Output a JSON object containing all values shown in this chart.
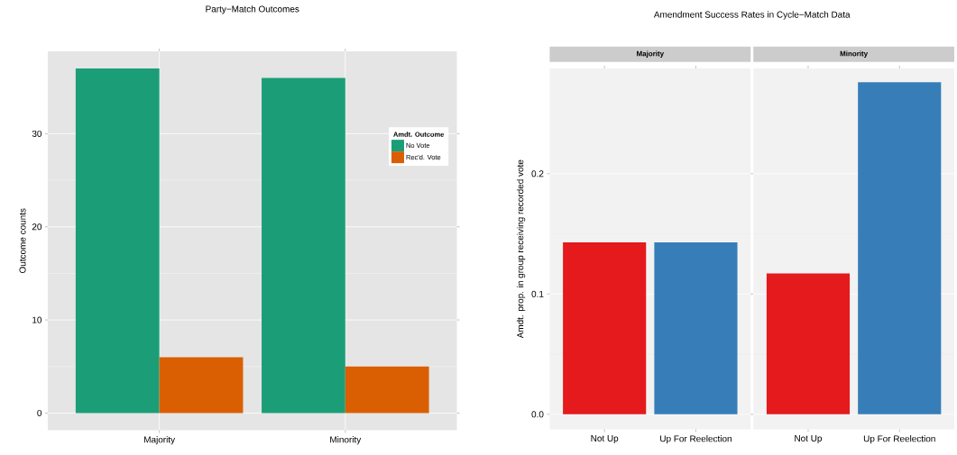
{
  "chart_data": [
    {
      "type": "bar",
      "title": "Party−Match Outcomes",
      "ylabel": "Outcome counts",
      "legend_title": "Amdt. Outcome",
      "legend": "top right",
      "grid": true,
      "categories": [
        "Majority",
        "Minority"
      ],
      "series": [
        {
          "name": "No Vote",
          "color": "#1b9e77",
          "values": [
            37,
            36
          ]
        },
        {
          "name": "Rec'd. Vote",
          "color": "#d95f02",
          "values": [
            6,
            5
          ]
        }
      ],
      "ylim": [
        -1.85,
        38.85
      ],
      "yticks": [
        0,
        10,
        20,
        30
      ]
    },
    {
      "type": "bar",
      "title": "Amendment Success Rates in Cycle−Match Data",
      "subtitle": "Majority",
      "grid": "y",
      "ylabel": "Amdt. prop. in group receiving recorded vote",
      "categories": [
        "Not Up",
        "Up For Reelection"
      ],
      "values": [
        0.143,
        0.143
      ],
      "colors": [
        "#e41a1c",
        "#377eb8"
      ],
      "ylim": [
        -0.0125,
        0.2875
      ],
      "yticks": [
        {
          "value": 0,
          "label": "0.0"
        },
        {
          "value": 0.1,
          "label": "0.1"
        },
        {
          "value": 0.2,
          "label": "0.2"
        }
      ]
    },
    {
      "type": "bar",
      "subtitle": "Minority",
      "tick_labels": "x",
      "grid": "y",
      "categories": [
        "Not Up",
        "Up For Reelection"
      ],
      "values": [
        0.117,
        0.276
      ],
      "colors": [
        "#e41a1c",
        "#377eb8"
      ],
      "ylim": [
        -0.0125,
        0.2875
      ]
    }
  ]
}
